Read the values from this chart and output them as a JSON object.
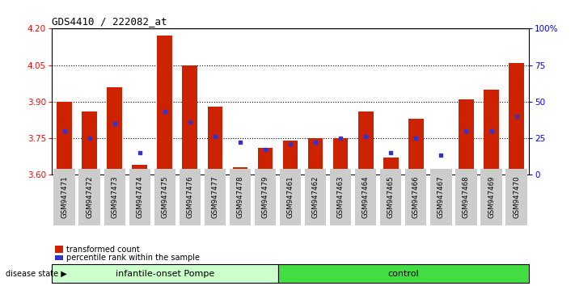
{
  "title": "GDS4410 / 222082_at",
  "samples": [
    "GSM947471",
    "GSM947472",
    "GSM947473",
    "GSM947474",
    "GSM947475",
    "GSM947476",
    "GSM947477",
    "GSM947478",
    "GSM947479",
    "GSM947461",
    "GSM947462",
    "GSM947463",
    "GSM947464",
    "GSM947465",
    "GSM947466",
    "GSM947467",
    "GSM947468",
    "GSM947469",
    "GSM947470"
  ],
  "red_values": [
    3.9,
    3.86,
    3.96,
    3.64,
    4.17,
    4.05,
    3.88,
    3.63,
    3.71,
    3.74,
    3.75,
    3.75,
    3.86,
    3.67,
    3.83,
    3.62,
    3.91,
    3.95,
    4.06
  ],
  "blue_percentiles": [
    30,
    25,
    35,
    15,
    43,
    36,
    26,
    22,
    17,
    21,
    22,
    25,
    26,
    15,
    25,
    13,
    30,
    30,
    40
  ],
  "ymin": 3.6,
  "ymax": 4.2,
  "y_ticks": [
    3.6,
    3.75,
    3.9,
    4.05,
    4.2
  ],
  "right_ticks": [
    0,
    25,
    50,
    75,
    100
  ],
  "right_tick_labels": [
    "0",
    "25",
    "50",
    "75",
    "100%"
  ],
  "dotted_lines": [
    3.75,
    3.9,
    4.05
  ],
  "group1_label": "infantile-onset Pompe",
  "group1_count": 9,
  "group2_label": "control",
  "group2_count": 10,
  "disease_state_label": "disease state",
  "legend_red": "transformed count",
  "legend_blue": "percentile rank within the sample",
  "bar_color": "#cc2200",
  "blue_color": "#3333cc",
  "group1_bg": "#ccffcc",
  "group2_bg": "#44dd44",
  "tick_label_bg": "#cccccc",
  "bar_width": 0.6
}
